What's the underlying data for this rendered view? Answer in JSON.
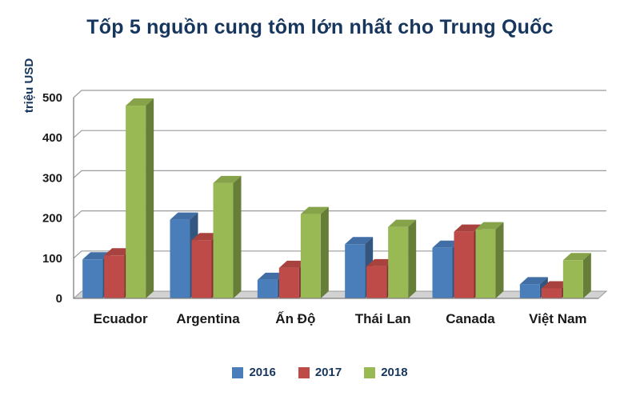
{
  "chart_data": {
    "type": "bar",
    "title": "Tốp 5 nguồn cung tôm lớn nhất cho Trung Quốc",
    "ylabel": "triệu USD",
    "xlabel": "",
    "categories": [
      "Ecuador",
      "Argentina",
      "Ấn Độ",
      "Thái Lan",
      "Canada",
      "Việt Nam"
    ],
    "series": [
      {
        "name": "2016",
        "color": "#4a7ebb",
        "values": [
          97,
          196,
          46,
          135,
          126,
          35
        ]
      },
      {
        "name": "2017",
        "color": "#be4b48",
        "values": [
          107,
          145,
          76,
          80,
          166,
          25
        ]
      },
      {
        "name": "2018",
        "color": "#98b954",
        "values": [
          480,
          287,
          210,
          178,
          172,
          95
        ]
      }
    ],
    "ylim": [
      0,
      500
    ],
    "yticks": [
      0,
      100,
      200,
      300,
      400,
      500
    ],
    "grid": true,
    "legend_position": "bottom",
    "style": "3d-clustered-bar"
  },
  "colors": {
    "title": "#17365d",
    "axis_text": "#1a1a1a",
    "ylabel_text": "#17365d",
    "legend_text": "#17365d",
    "gridline": "#9b9b9b",
    "axis_line": "#808080",
    "floor": "#d2d2d2",
    "background": "#ffffff"
  }
}
